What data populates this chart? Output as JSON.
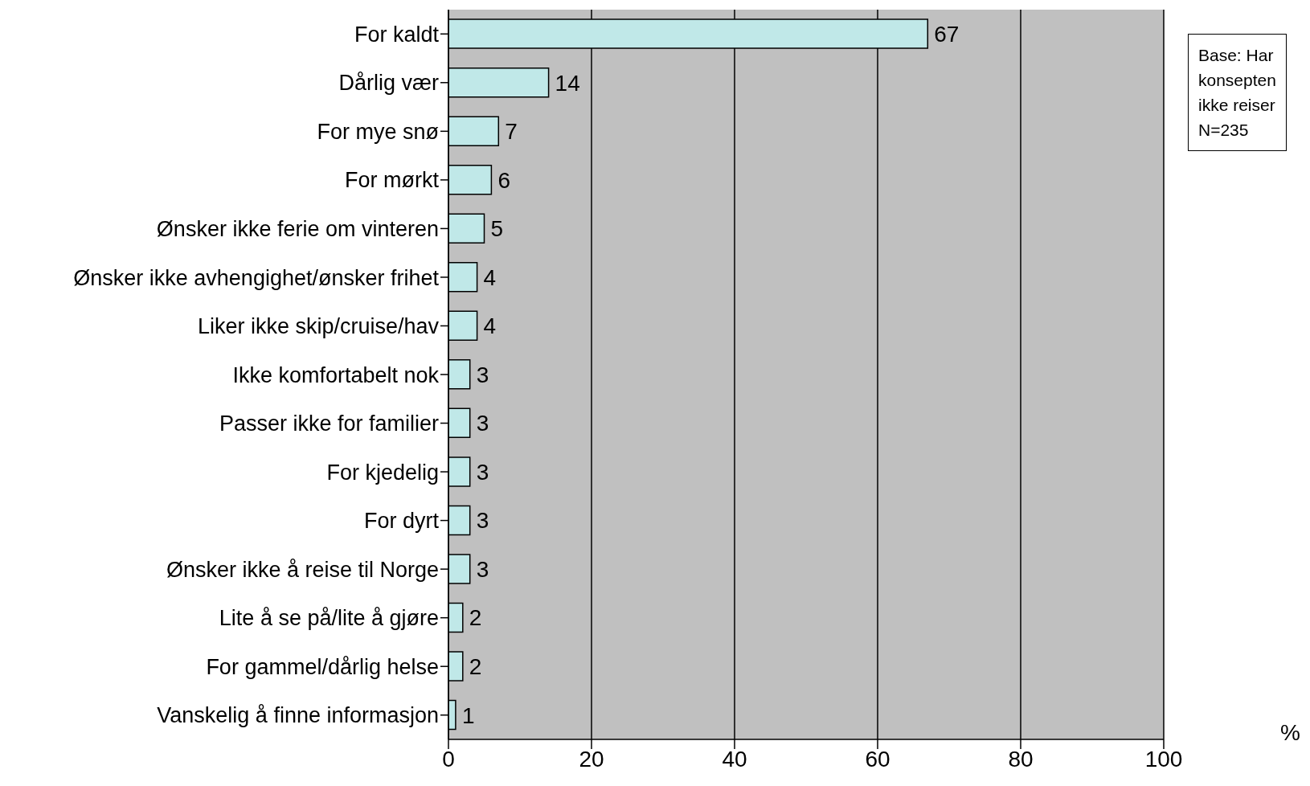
{
  "chart_data": {
    "type": "bar",
    "orientation": "horizontal",
    "categories": [
      "For kaldt",
      "Dårlig vær",
      "For mye snø",
      "For mørkt",
      "Ønsker ikke ferie om vinteren",
      "Ønsker ikke avhengighet/ønsker frihet",
      "Liker ikke skip/cruise/hav",
      "Ikke komfortabelt nok",
      "Passer ikke for familier",
      "For kjedelig",
      "For dyrt",
      "Ønsker ikke å reise til Norge",
      "Lite å se på/lite å gjøre",
      "For gammel/dårlig helse",
      "Vanskelig å finne informasjon"
    ],
    "values": [
      67,
      14,
      7,
      6,
      5,
      4,
      4,
      3,
      3,
      3,
      3,
      3,
      2,
      2,
      1
    ],
    "color": "#c0e8e8",
    "xlim": [
      0,
      100
    ],
    "xticks": [
      0,
      20,
      40,
      60,
      80,
      100
    ],
    "xlabel": "%",
    "data_labels": true,
    "grid": "x",
    "annotations": [
      "Base: Har\nkonsepten\nikke reiser\nN=235"
    ]
  }
}
